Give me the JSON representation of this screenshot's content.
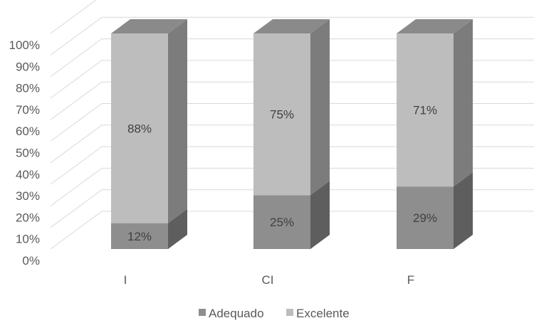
{
  "chart_data": {
    "type": "bar",
    "stacked": true,
    "three_d": true,
    "categories": [
      "I",
      "CI",
      "F"
    ],
    "series": [
      {
        "name": "Adequado",
        "values": [
          12,
          25,
          29
        ],
        "color": "#8e8e8e",
        "side_color": "#5e5e5e",
        "top_color": "#8e8e8e"
      },
      {
        "name": "Excelente",
        "values": [
          88,
          75,
          71
        ],
        "color": "#bdbdbd",
        "side_color": "#7c7c7c",
        "top_color": "#8a8a8a"
      }
    ],
    "data_labels": [
      [
        "12%",
        "25%",
        "29%"
      ],
      [
        "88%",
        "75%",
        "71%"
      ]
    ],
    "y_ticks": [
      "0%",
      "10%",
      "20%",
      "30%",
      "40%",
      "50%",
      "60%",
      "70%",
      "80%",
      "90%",
      "100%"
    ],
    "ylim": [
      0,
      100
    ],
    "y_unit": "%",
    "grid": true,
    "legend_position": "bottom",
    "title": "",
    "xlabel": "",
    "ylabel": ""
  }
}
